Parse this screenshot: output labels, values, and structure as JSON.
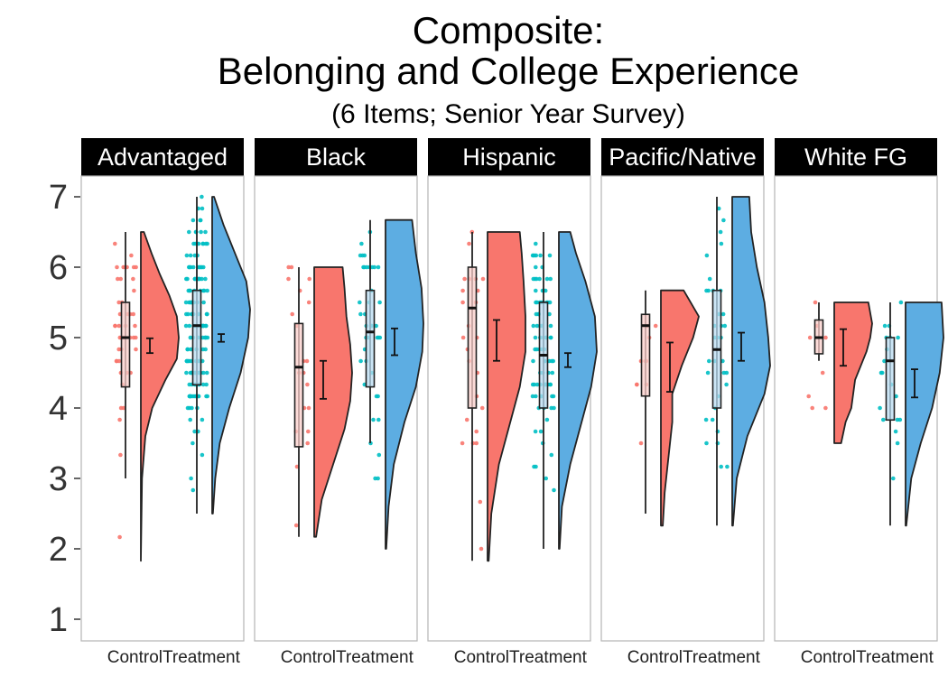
{
  "chart_data": {
    "type": "raincloud",
    "title_lines": [
      "Composite:",
      "Belonging and College Experience"
    ],
    "subtitle": "(6 Items; Senior Year Survey)",
    "xlabel": "",
    "ylabel": "",
    "y_ticks": [
      1,
      2,
      3,
      4,
      5,
      6,
      7
    ],
    "ylim": [
      0.8,
      7.3
    ],
    "categories": [
      "Control",
      "Treatment"
    ],
    "colors": {
      "Control": {
        "fill": "#F8766D",
        "point": "#F8766D",
        "box": "#fbcfcb"
      },
      "Treatment": {
        "fill": "#5DADE2",
        "point": "#00BFC4",
        "box": "#b9dcf2"
      }
    },
    "grid": false,
    "legend": "none",
    "panels": [
      {
        "label": "Advantaged",
        "groups": [
          {
            "name": "Control",
            "min": 3.0,
            "q1": 4.3,
            "median": 5.0,
            "q3": 5.5,
            "max": 6.5,
            "mean": 4.88,
            "ci": [
              4.78,
              4.99
            ],
            "range": [
              1.83,
              6.5
            ],
            "n": 45,
            "density": [
              [
                1.83,
                0
              ],
              [
                3.0,
                0.03
              ],
              [
                3.6,
                0.12
              ],
              [
                4.0,
                0.3
              ],
              [
                4.4,
                0.65
              ],
              [
                4.7,
                0.95
              ],
              [
                5.0,
                1.0
              ],
              [
                5.3,
                0.95
              ],
              [
                5.6,
                0.75
              ],
              [
                5.9,
                0.5
              ],
              [
                6.2,
                0.28
              ],
              [
                6.5,
                0.08
              ]
            ]
          },
          {
            "name": "Treatment",
            "min": 2.5,
            "q1": 4.33,
            "median": 5.17,
            "q3": 5.67,
            "max": 7.0,
            "mean": 4.99,
            "ci": [
              4.94,
              5.05
            ],
            "range": [
              2.5,
              7.0
            ],
            "n": 150,
            "density": [
              [
                2.5,
                0.02
              ],
              [
                3.0,
                0.08
              ],
              [
                3.5,
                0.2
              ],
              [
                4.0,
                0.45
              ],
              [
                4.5,
                0.75
              ],
              [
                5.0,
                0.95
              ],
              [
                5.4,
                1.0
              ],
              [
                5.8,
                0.9
              ],
              [
                6.2,
                0.6
              ],
              [
                6.6,
                0.3
              ],
              [
                7.0,
                0.05
              ]
            ]
          }
        ]
      },
      {
        "label": "Black",
        "groups": [
          {
            "name": "Control",
            "min": 2.17,
            "q1": 3.45,
            "median": 4.58,
            "q3": 5.2,
            "max": 6.0,
            "mean": 4.4,
            "ci": [
              4.13,
              4.67
            ],
            "range": [
              2.17,
              6.0
            ],
            "n": 20,
            "density": [
              [
                2.17,
                0.05
              ],
              [
                2.7,
                0.2
              ],
              [
                3.2,
                0.5
              ],
              [
                3.7,
                0.8
              ],
              [
                4.1,
                0.95
              ],
              [
                4.5,
                1.0
              ],
              [
                4.9,
                0.95
              ],
              [
                5.3,
                0.85
              ],
              [
                5.7,
                0.8
              ],
              [
                6.0,
                0.75
              ]
            ]
          },
          {
            "name": "Treatment",
            "min": 3.5,
            "q1": 4.3,
            "median": 5.08,
            "q3": 5.67,
            "max": 6.67,
            "mean": 4.95,
            "ci": [
              4.75,
              5.13
            ],
            "range": [
              2.0,
              6.67
            ],
            "n": 40,
            "density": [
              [
                2.0,
                0.02
              ],
              [
                2.6,
                0.08
              ],
              [
                3.2,
                0.22
              ],
              [
                3.8,
                0.5
              ],
              [
                4.3,
                0.8
              ],
              [
                4.8,
                0.97
              ],
              [
                5.2,
                1.0
              ],
              [
                5.7,
                0.95
              ],
              [
                6.2,
                0.8
              ],
              [
                6.67,
                0.7
              ]
            ]
          }
        ]
      },
      {
        "label": "Hispanic",
        "groups": [
          {
            "name": "Control",
            "min": 1.83,
            "q1": 4.0,
            "median": 5.42,
            "q3": 6.0,
            "max": 6.5,
            "mean": 4.95,
            "ci": [
              4.67,
              5.25
            ],
            "range": [
              1.83,
              6.5
            ],
            "n": 25,
            "density": [
              [
                1.83,
                0.03
              ],
              [
                2.5,
                0.1
              ],
              [
                3.2,
                0.3
              ],
              [
                3.8,
                0.6
              ],
              [
                4.3,
                0.85
              ],
              [
                4.8,
                1.0
              ],
              [
                5.3,
                1.0
              ],
              [
                5.8,
                0.95
              ],
              [
                6.2,
                0.9
              ],
              [
                6.5,
                0.85
              ]
            ]
          },
          {
            "name": "Treatment",
            "min": 2.0,
            "q1": 4.0,
            "median": 4.75,
            "q3": 5.5,
            "max": 6.5,
            "mean": 4.68,
            "ci": [
              4.58,
              4.78
            ],
            "range": [
              2.0,
              6.5
            ],
            "n": 90,
            "density": [
              [
                2.0,
                0.02
              ],
              [
                2.6,
                0.08
              ],
              [
                3.2,
                0.3
              ],
              [
                3.8,
                0.6
              ],
              [
                4.3,
                0.85
              ],
              [
                4.8,
                1.0
              ],
              [
                5.3,
                0.95
              ],
              [
                5.8,
                0.7
              ],
              [
                6.2,
                0.45
              ],
              [
                6.5,
                0.3
              ]
            ]
          }
        ]
      },
      {
        "label": "Pacific/Native",
        "groups": [
          {
            "name": "Control",
            "min": 2.5,
            "q1": 4.17,
            "median": 5.17,
            "q3": 5.33,
            "max": 5.67,
            "mean": 4.58,
            "ci": [
              4.23,
              4.93
            ],
            "range": [
              2.33,
              5.67
            ],
            "n": 10,
            "density": [
              [
                2.33,
                0.05
              ],
              [
                2.8,
                0.1
              ],
              [
                3.3,
                0.2
              ],
              [
                3.8,
                0.3
              ],
              [
                4.2,
                0.3
              ],
              [
                4.6,
                0.55
              ],
              [
                5.0,
                0.85
              ],
              [
                5.3,
                1.0
              ],
              [
                5.67,
                0.6
              ]
            ]
          },
          {
            "name": "Treatment",
            "min": 2.33,
            "q1": 4.0,
            "median": 4.83,
            "q3": 5.67,
            "max": 7.0,
            "mean": 4.87,
            "ci": [
              4.67,
              5.07
            ],
            "range": [
              2.33,
              7.0
            ],
            "n": 35,
            "density": [
              [
                2.33,
                0.02
              ],
              [
                3.0,
                0.12
              ],
              [
                3.6,
                0.4
              ],
              [
                4.2,
                0.85
              ],
              [
                4.6,
                1.0
              ],
              [
                5.0,
                0.95
              ],
              [
                5.5,
                0.85
              ],
              [
                6.0,
                0.65
              ],
              [
                6.5,
                0.5
              ],
              [
                7.0,
                0.45
              ]
            ]
          }
        ]
      },
      {
        "label": "White FG",
        "groups": [
          {
            "name": "Control",
            "min": 4.67,
            "q1": 4.77,
            "median": 5.0,
            "q3": 5.25,
            "max": 5.5,
            "mean": 4.85,
            "ci": [
              4.6,
              5.12
            ],
            "range": [
              3.5,
              5.5
            ],
            "n": 8,
            "density": [
              [
                3.5,
                0.18
              ],
              [
                3.8,
                0.3
              ],
              [
                4.0,
                0.45
              ],
              [
                4.2,
                0.5
              ],
              [
                4.4,
                0.55
              ],
              [
                4.6,
                0.7
              ],
              [
                4.8,
                0.85
              ],
              [
                5.0,
                0.95
              ],
              [
                5.2,
                1.0
              ],
              [
                5.5,
                0.9
              ]
            ]
          },
          {
            "name": "Treatment",
            "min": 2.33,
            "q1": 3.83,
            "median": 4.67,
            "q3": 5.0,
            "max": 5.5,
            "mean": 4.35,
            "ci": [
              4.15,
              4.55
            ],
            "range": [
              2.33,
              5.5
            ],
            "n": 20,
            "density": [
              [
                2.33,
                0.02
              ],
              [
                3.0,
                0.15
              ],
              [
                3.5,
                0.4
              ],
              [
                4.0,
                0.7
              ],
              [
                4.5,
                0.9
              ],
              [
                5.0,
                1.0
              ],
              [
                5.5,
                0.95
              ]
            ]
          }
        ]
      }
    ]
  }
}
